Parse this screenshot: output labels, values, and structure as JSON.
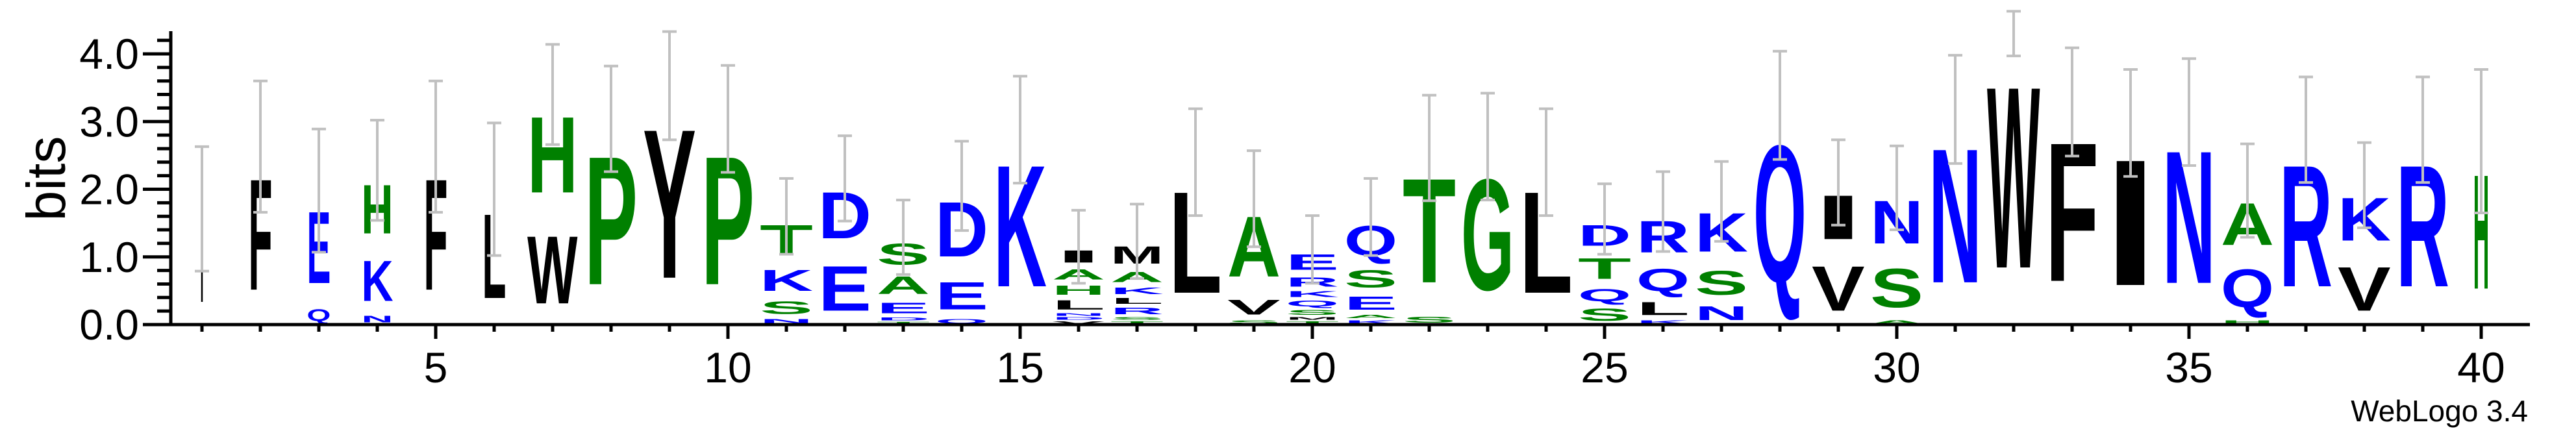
{
  "chart_data": {
    "type": "sequence-logo",
    "ylabel": "bits",
    "ylim": [
      0,
      4.32
    ],
    "yticks": [
      "0.0",
      "1.0",
      "2.0",
      "3.0",
      "4.0"
    ],
    "ytick_values": [
      0,
      1,
      2,
      3,
      4
    ],
    "y_minor_step": 0.2,
    "xticks": [
      "5",
      "10",
      "15",
      "20",
      "25",
      "30",
      "35",
      "40"
    ],
    "xtick_values": [
      5,
      10,
      15,
      20,
      25,
      30,
      35,
      40
    ],
    "credit": "WebLogo 3.4",
    "colors": {
      "green": "#008000",
      "blue": "#0000ff",
      "black": "#000000",
      "error_bar": "#c0c0c0"
    },
    "residue_colors": {
      "H": "#008000",
      "P": "#008000",
      "T": "#008000",
      "S": "#008000",
      "A": "#008000",
      "G": "#008000",
      "K": "#0000ff",
      "E": "#0000ff",
      "D": "#0000ff",
      "Q": "#0000ff",
      "N": "#0000ff",
      "R": "#0000ff",
      "I": "#000000",
      "F": "#000000",
      "L": "#000000",
      "W": "#000000",
      "Y": "#000000",
      "M": "#000000",
      "V": "#000000"
    },
    "columns": [
      {
        "pos": 1,
        "weight": 0.06,
        "err": 0.92,
        "letters": [
          [
            "I",
            1.71
          ]
        ]
      },
      {
        "pos": 2,
        "weight": 0.45,
        "err": 0.97,
        "letters": [
          [
            "F",
            2.63
          ]
        ]
      },
      {
        "pos": 3,
        "weight": 0.45,
        "err": 0.91,
        "letters": [
          [
            "E",
            1.7
          ],
          [
            "Q",
            0.28
          ]
        ]
      },
      {
        "pos": 4,
        "weight": 0.6,
        "err": 0.74,
        "letters": [
          [
            "H",
            1.16
          ],
          [
            "K",
            0.96
          ],
          [
            "N",
            0.16
          ]
        ]
      },
      {
        "pos": 5,
        "weight": 0.45,
        "err": 0.97,
        "letters": [
          [
            "F",
            2.63
          ]
        ]
      },
      {
        "pos": 6,
        "weight": 0.45,
        "err": 0.98,
        "letters": [
          [
            "L",
            2.0
          ]
        ]
      },
      {
        "pos": 7,
        "weight": 0.95,
        "err": 0.74,
        "letters": [
          [
            "H",
            1.8
          ],
          [
            "W",
            1.6
          ]
        ]
      },
      {
        "pos": 8,
        "weight": 1,
        "err": 0.78,
        "letters": [
          [
            "P",
            3.04
          ]
        ]
      },
      {
        "pos": 9,
        "weight": 1,
        "err": 0.8,
        "letters": [
          [
            "Y",
            3.53
          ]
        ]
      },
      {
        "pos": 10,
        "weight": 1,
        "err": 0.79,
        "letters": [
          [
            "P",
            3.04
          ]
        ]
      },
      {
        "pos": 11,
        "weight": 1,
        "err": 0.56,
        "letters": [
          [
            "T",
            0.7
          ],
          [
            "K",
            0.5
          ],
          [
            "S",
            0.3
          ],
          [
            "N",
            0.1
          ]
        ]
      },
      {
        "pos": 12,
        "weight": 1,
        "err": 0.63,
        "letters": [
          [
            "D",
            1.1
          ],
          [
            "E",
            1.06
          ]
        ]
      },
      {
        "pos": 13,
        "weight": 1,
        "err": 0.55,
        "letters": [
          [
            "S",
            0.5
          ],
          [
            "A",
            0.42
          ],
          [
            "E",
            0.25
          ],
          [
            "D",
            0.07
          ],
          [
            "T",
            0.05
          ]
        ]
      },
      {
        "pos": 14,
        "weight": 1,
        "err": 0.66,
        "letters": [
          [
            "D",
            1.3
          ],
          [
            "E",
            0.65
          ],
          [
            "Q",
            0.1
          ]
        ]
      },
      {
        "pos": 15,
        "weight": 1,
        "err": 0.79,
        "letters": [
          [
            "K",
            2.88
          ]
        ]
      },
      {
        "pos": 16,
        "weight": 1,
        "err": 0.54,
        "letters": [
          [
            "I",
            0.29
          ],
          [
            "A",
            0.24
          ],
          [
            "H",
            0.22
          ],
          [
            "L",
            0.22
          ],
          [
            "N",
            0.06
          ],
          [
            "D",
            0.06
          ],
          [
            "V",
            0.06
          ]
        ]
      },
      {
        "pos": 17,
        "weight": 1,
        "err": 0.55,
        "letters": [
          [
            "M",
            0.41
          ],
          [
            "A",
            0.24
          ],
          [
            "K",
            0.16
          ],
          [
            "L",
            0.14
          ],
          [
            "R",
            0.16
          ],
          [
            "S",
            0.06
          ],
          [
            "T",
            0.06
          ]
        ]
      },
      {
        "pos": 18,
        "weight": 1,
        "err": 0.79,
        "letters": [
          [
            "L",
            2.4
          ]
        ]
      },
      {
        "pos": 19,
        "weight": 1,
        "err": 0.71,
        "letters": [
          [
            "A",
            1.43
          ],
          [
            "V",
            0.35
          ],
          [
            "S",
            0.08
          ]
        ]
      },
      {
        "pos": 20,
        "weight": 1,
        "err": 0.5,
        "letters": [
          [
            "E",
            0.37
          ],
          [
            "R",
            0.22
          ],
          [
            "K",
            0.14
          ],
          [
            "Q",
            0.14
          ],
          [
            "S",
            0.12
          ],
          [
            "M",
            0.06
          ],
          [
            "T",
            0.06
          ]
        ]
      },
      {
        "pos": 21,
        "weight": 1,
        "err": 0.57,
        "letters": [
          [
            "Q",
            0.71
          ],
          [
            "S",
            0.41
          ],
          [
            "E",
            0.31
          ],
          [
            "A",
            0.08
          ],
          [
            "K",
            0.08
          ]
        ]
      },
      {
        "pos": 22,
        "weight": 1,
        "err": 0.78,
        "letters": [
          [
            "T",
            2.47
          ],
          [
            "S",
            0.14
          ]
        ]
      },
      {
        "pos": 23,
        "weight": 1,
        "err": 0.79,
        "letters": [
          [
            "G",
            2.63
          ]
        ]
      },
      {
        "pos": 24,
        "weight": 1,
        "err": 0.79,
        "letters": [
          [
            "L",
            2.4
          ]
        ]
      },
      {
        "pos": 25,
        "weight": 1,
        "err": 0.52,
        "letters": [
          [
            "D",
            0.49
          ],
          [
            "T",
            0.49
          ],
          [
            "Q",
            0.29
          ],
          [
            "S",
            0.29
          ]
        ]
      },
      {
        "pos": 26,
        "weight": 1,
        "err": 0.59,
        "letters": [
          [
            "R",
            0.75
          ],
          [
            "Q",
            0.53
          ],
          [
            "L",
            0.31
          ],
          [
            "K",
            0.08
          ]
        ]
      },
      {
        "pos": 27,
        "weight": 1,
        "err": 0.59,
        "letters": [
          [
            "K",
            0.92
          ],
          [
            "S",
            0.57
          ],
          [
            "N",
            0.33
          ]
        ]
      },
      {
        "pos": 28,
        "weight": 1,
        "err": 0.8,
        "letters": [
          [
            "Q",
            3.24
          ]
        ]
      },
      {
        "pos": 29,
        "weight": 1,
        "err": 0.63,
        "letters": [
          [
            "I",
            1.04
          ],
          [
            "V",
            1.06
          ]
        ]
      },
      {
        "pos": 30,
        "weight": 1,
        "err": 0.62,
        "letters": [
          [
            "N",
            1.02
          ],
          [
            "S",
            0.92
          ],
          [
            "A",
            0.08
          ]
        ]
      },
      {
        "pos": 31,
        "weight": 1,
        "err": 0.8,
        "letters": [
          [
            "N",
            3.18
          ]
        ]
      },
      {
        "pos": 32,
        "weight": 1,
        "err": 0.33,
        "letters": [
          [
            "W",
            4.3
          ]
        ]
      },
      {
        "pos": 33,
        "weight": 1,
        "err": 0.8,
        "letters": [
          [
            "F",
            3.29
          ]
        ]
      },
      {
        "pos": 34,
        "weight": 1,
        "err": 0.79,
        "letters": [
          [
            "I",
            2.98
          ]
        ]
      },
      {
        "pos": 35,
        "weight": 1,
        "err": 0.79,
        "letters": [
          [
            "N",
            3.14
          ]
        ]
      },
      {
        "pos": 36,
        "weight": 1,
        "err": 0.69,
        "letters": [
          [
            "A",
            1.0
          ],
          [
            "Q",
            0.9
          ],
          [
            "H",
            0.08
          ]
        ]
      },
      {
        "pos": 37,
        "weight": 1,
        "err": 0.78,
        "letters": [
          [
            "R",
            2.88
          ]
        ]
      },
      {
        "pos": 38,
        "weight": 1,
        "err": 0.63,
        "letters": [
          [
            "K",
            1.02
          ],
          [
            "V",
            1.04
          ]
        ]
      },
      {
        "pos": 39,
        "weight": 1,
        "err": 0.78,
        "letters": [
          [
            "R",
            2.88
          ]
        ]
      },
      {
        "pos": 40,
        "weight": 0.3,
        "err": 1.06,
        "letters": [
          [
            "H",
            2.71
          ]
        ]
      }
    ]
  }
}
